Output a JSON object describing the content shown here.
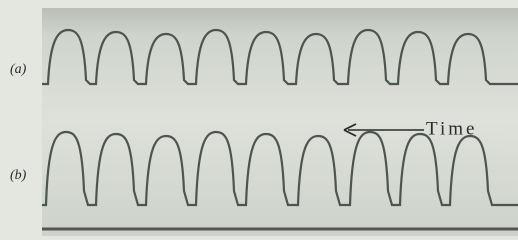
{
  "panels": [
    {
      "label": "(a)"
    },
    {
      "label": "(b)"
    }
  ],
  "annotation": "Time"
}
